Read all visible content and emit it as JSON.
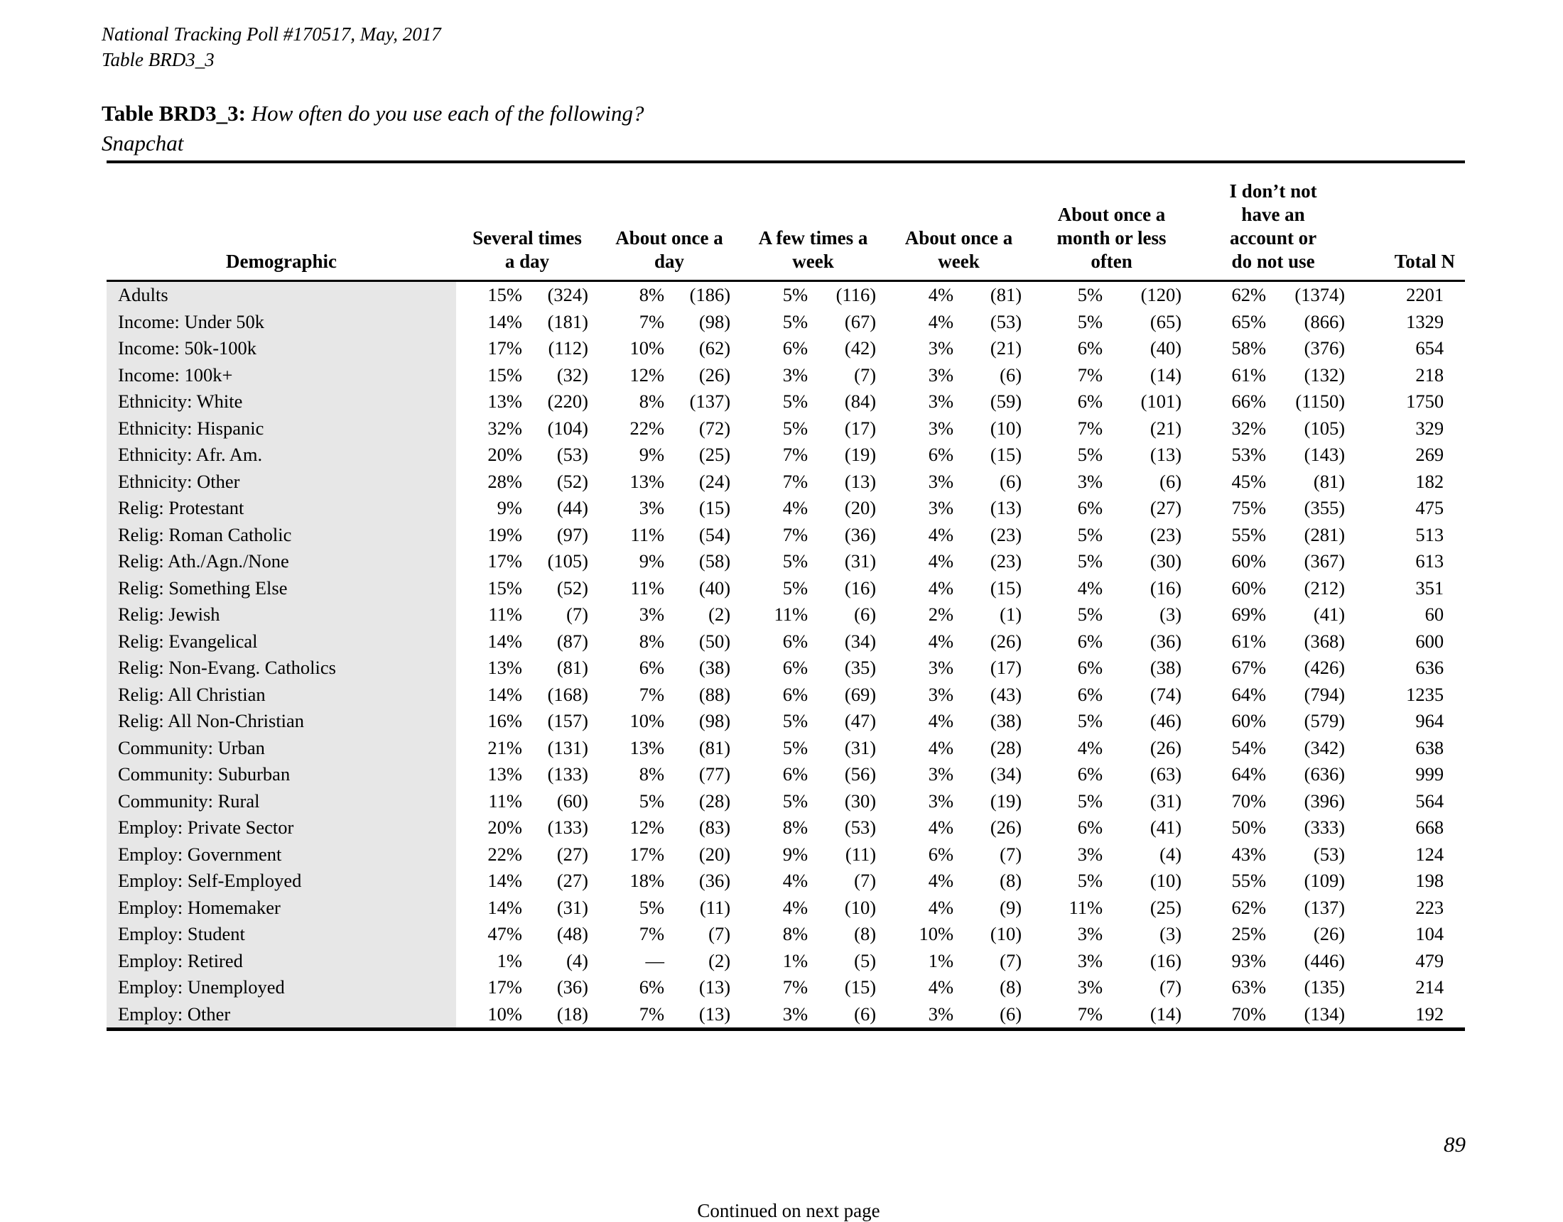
{
  "page": {
    "meta_line1": "National Tracking Poll #170517, May, 2017",
    "meta_line2": "Table BRD3_3",
    "title_label": "Table BRD3_3:",
    "title_question": "How often do you use each of the following?",
    "subject": "Snapchat",
    "continued_note": "Continued on next page",
    "page_number": "89"
  },
  "colors": {
    "row_shade": "#e7e7e7",
    "rule": "#000000",
    "text": "#000000"
  },
  "table": {
    "demographic_header": "Demographic",
    "column_headers": [
      {
        "label": "Several times a day",
        "lines": [
          "Several times",
          "a day"
        ]
      },
      {
        "label": "About once a day",
        "lines": [
          "About once a",
          "day"
        ]
      },
      {
        "label": "A few times a week",
        "lines": [
          "A few times a",
          "week"
        ]
      },
      {
        "label": "About once a week",
        "lines": [
          "About once a",
          "week"
        ]
      },
      {
        "label": "About once a month or less often",
        "lines": [
          "About once a",
          "month or less",
          "often"
        ]
      },
      {
        "label": "I don’t not have an account or do not use",
        "lines": [
          "I don’t not",
          "have an",
          "account or",
          "do not use"
        ]
      },
      {
        "label": "Total N",
        "lines": [
          "Total N"
        ]
      }
    ],
    "rows": [
      {
        "label": "Adults",
        "cells": [
          "15%",
          "(324)",
          "8%",
          "(186)",
          "5%",
          "(116)",
          "4%",
          "(81)",
          "5%",
          "(120)",
          "62%",
          "(1374)"
        ],
        "total": "2201"
      },
      {
        "label": "Income: Under 50k",
        "cells": [
          "14%",
          "(181)",
          "7%",
          "(98)",
          "5%",
          "(67)",
          "4%",
          "(53)",
          "5%",
          "(65)",
          "65%",
          "(866)"
        ],
        "total": "1329"
      },
      {
        "label": "Income: 50k-100k",
        "cells": [
          "17%",
          "(112)",
          "10%",
          "(62)",
          "6%",
          "(42)",
          "3%",
          "(21)",
          "6%",
          "(40)",
          "58%",
          "(376)"
        ],
        "total": "654"
      },
      {
        "label": "Income: 100k+",
        "cells": [
          "15%",
          "(32)",
          "12%",
          "(26)",
          "3%",
          "(7)",
          "3%",
          "(6)",
          "7%",
          "(14)",
          "61%",
          "(132)"
        ],
        "total": "218"
      },
      {
        "label": "Ethnicity: White",
        "cells": [
          "13%",
          "(220)",
          "8%",
          "(137)",
          "5%",
          "(84)",
          "3%",
          "(59)",
          "6%",
          "(101)",
          "66%",
          "(1150)"
        ],
        "total": "1750"
      },
      {
        "label": "Ethnicity: Hispanic",
        "cells": [
          "32%",
          "(104)",
          "22%",
          "(72)",
          "5%",
          "(17)",
          "3%",
          "(10)",
          "7%",
          "(21)",
          "32%",
          "(105)"
        ],
        "total": "329"
      },
      {
        "label": "Ethnicity: Afr. Am.",
        "cells": [
          "20%",
          "(53)",
          "9%",
          "(25)",
          "7%",
          "(19)",
          "6%",
          "(15)",
          "5%",
          "(13)",
          "53%",
          "(143)"
        ],
        "total": "269"
      },
      {
        "label": "Ethnicity: Other",
        "cells": [
          "28%",
          "(52)",
          "13%",
          "(24)",
          "7%",
          "(13)",
          "3%",
          "(6)",
          "3%",
          "(6)",
          "45%",
          "(81)"
        ],
        "total": "182"
      },
      {
        "label": "Relig: Protestant",
        "cells": [
          "9%",
          "(44)",
          "3%",
          "(15)",
          "4%",
          "(20)",
          "3%",
          "(13)",
          "6%",
          "(27)",
          "75%",
          "(355)"
        ],
        "total": "475"
      },
      {
        "label": "Relig: Roman Catholic",
        "cells": [
          "19%",
          "(97)",
          "11%",
          "(54)",
          "7%",
          "(36)",
          "4%",
          "(23)",
          "5%",
          "(23)",
          "55%",
          "(281)"
        ],
        "total": "513"
      },
      {
        "label": "Relig: Ath./Agn./None",
        "cells": [
          "17%",
          "(105)",
          "9%",
          "(58)",
          "5%",
          "(31)",
          "4%",
          "(23)",
          "5%",
          "(30)",
          "60%",
          "(367)"
        ],
        "total": "613"
      },
      {
        "label": "Relig: Something Else",
        "cells": [
          "15%",
          "(52)",
          "11%",
          "(40)",
          "5%",
          "(16)",
          "4%",
          "(15)",
          "4%",
          "(16)",
          "60%",
          "(212)"
        ],
        "total": "351"
      },
      {
        "label": "Relig: Jewish",
        "cells": [
          "11%",
          "(7)",
          "3%",
          "(2)",
          "11%",
          "(6)",
          "2%",
          "(1)",
          "5%",
          "(3)",
          "69%",
          "(41)"
        ],
        "total": "60"
      },
      {
        "label": "Relig: Evangelical",
        "cells": [
          "14%",
          "(87)",
          "8%",
          "(50)",
          "6%",
          "(34)",
          "4%",
          "(26)",
          "6%",
          "(36)",
          "61%",
          "(368)"
        ],
        "total": "600"
      },
      {
        "label": "Relig: Non-Evang. Catholics",
        "cells": [
          "13%",
          "(81)",
          "6%",
          "(38)",
          "6%",
          "(35)",
          "3%",
          "(17)",
          "6%",
          "(38)",
          "67%",
          "(426)"
        ],
        "total": "636"
      },
      {
        "label": "Relig: All Christian",
        "cells": [
          "14%",
          "(168)",
          "7%",
          "(88)",
          "6%",
          "(69)",
          "3%",
          "(43)",
          "6%",
          "(74)",
          "64%",
          "(794)"
        ],
        "total": "1235"
      },
      {
        "label": "Relig: All Non-Christian",
        "cells": [
          "16%",
          "(157)",
          "10%",
          "(98)",
          "5%",
          "(47)",
          "4%",
          "(38)",
          "5%",
          "(46)",
          "60%",
          "(579)"
        ],
        "total": "964"
      },
      {
        "label": "Community: Urban",
        "cells": [
          "21%",
          "(131)",
          "13%",
          "(81)",
          "5%",
          "(31)",
          "4%",
          "(28)",
          "4%",
          "(26)",
          "54%",
          "(342)"
        ],
        "total": "638"
      },
      {
        "label": "Community: Suburban",
        "cells": [
          "13%",
          "(133)",
          "8%",
          "(77)",
          "6%",
          "(56)",
          "3%",
          "(34)",
          "6%",
          "(63)",
          "64%",
          "(636)"
        ],
        "total": "999"
      },
      {
        "label": "Community: Rural",
        "cells": [
          "11%",
          "(60)",
          "5%",
          "(28)",
          "5%",
          "(30)",
          "3%",
          "(19)",
          "5%",
          "(31)",
          "70%",
          "(396)"
        ],
        "total": "564"
      },
      {
        "label": "Employ: Private Sector",
        "cells": [
          "20%",
          "(133)",
          "12%",
          "(83)",
          "8%",
          "(53)",
          "4%",
          "(26)",
          "6%",
          "(41)",
          "50%",
          "(333)"
        ],
        "total": "668"
      },
      {
        "label": "Employ: Government",
        "cells": [
          "22%",
          "(27)",
          "17%",
          "(20)",
          "9%",
          "(11)",
          "6%",
          "(7)",
          "3%",
          "(4)",
          "43%",
          "(53)"
        ],
        "total": "124"
      },
      {
        "label": "Employ: Self-Employed",
        "cells": [
          "14%",
          "(27)",
          "18%",
          "(36)",
          "4%",
          "(7)",
          "4%",
          "(8)",
          "5%",
          "(10)",
          "55%",
          "(109)"
        ],
        "total": "198"
      },
      {
        "label": "Employ: Homemaker",
        "cells": [
          "14%",
          "(31)",
          "5%",
          "(11)",
          "4%",
          "(10)",
          "4%",
          "(9)",
          "11%",
          "(25)",
          "62%",
          "(137)"
        ],
        "total": "223"
      },
      {
        "label": "Employ: Student",
        "cells": [
          "47%",
          "(48)",
          "7%",
          "(7)",
          "8%",
          "(8)",
          "10%",
          "(10)",
          "3%",
          "(3)",
          "25%",
          "(26)"
        ],
        "total": "104"
      },
      {
        "label": "Employ: Retired",
        "cells": [
          "1%",
          "(4)",
          "—",
          "(2)",
          "1%",
          "(5)",
          "1%",
          "(7)",
          "3%",
          "(16)",
          "93%",
          "(446)"
        ],
        "total": "479"
      },
      {
        "label": "Employ: Unemployed",
        "cells": [
          "17%",
          "(36)",
          "6%",
          "(13)",
          "7%",
          "(15)",
          "4%",
          "(8)",
          "3%",
          "(7)",
          "63%",
          "(135)"
        ],
        "total": "214"
      },
      {
        "label": "Employ: Other",
        "cells": [
          "10%",
          "(18)",
          "7%",
          "(13)",
          "3%",
          "(6)",
          "3%",
          "(6)",
          "7%",
          "(14)",
          "70%",
          "(134)"
        ],
        "total": "192"
      }
    ]
  }
}
